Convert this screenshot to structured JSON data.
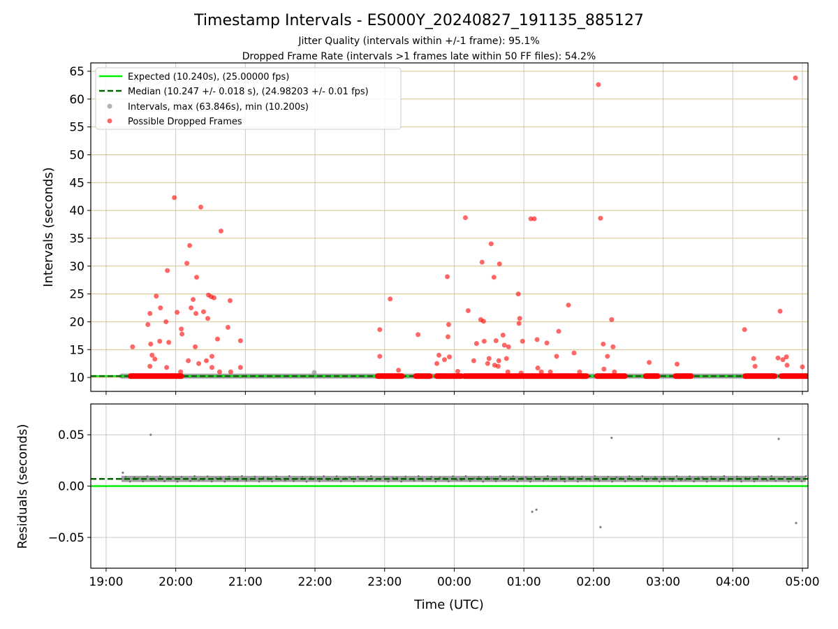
{
  "chart_data": [
    {
      "type": "scatter",
      "title": "Timestamp Intervals - ES000Y_20240827_191135_885127",
      "subtitle_lines": [
        "Jitter Quality (intervals within +/-1 frame): 95.1%",
        "Dropped Frame Rate (intervals >1 frames late within 50 FF files): 54.2%"
      ],
      "xlabel": "",
      "ylabel": "Intervals (seconds)",
      "x_unit": "hours after 19:00 UTC (axis ticks are HH:MM clock times)",
      "xlim": [
        -0.22,
        10.08
      ],
      "ylim": [
        7.5,
        66.5
      ],
      "x_tick_labels": [
        "19:00",
        "20:00",
        "21:00",
        "22:00",
        "23:00",
        "00:00",
        "01:00",
        "02:00",
        "03:00",
        "04:00",
        "05:00"
      ],
      "y_ticks": [
        10,
        15,
        20,
        25,
        30,
        35,
        40,
        45,
        50,
        55,
        60,
        65
      ],
      "grid": true,
      "legend_position": "upper left",
      "legend": [
        "Expected (10.240s), (25.00000 fps)",
        "Median (10.247 +/- 0.018 s), (24.98203 +/- 0.01 fps)",
        "Intervals, max (63.846s), min (10.200s)",
        "Possible Dropped Frames"
      ],
      "series": [
        {
          "name": "Expected (10.240s), (25.00000 fps)",
          "kind": "hline",
          "y": 10.24,
          "color": "#00ee00"
        },
        {
          "name": "Median (10.247 +/- 0.018 s), (24.98203 +/- 0.01 fps)",
          "kind": "hline",
          "y": 10.247,
          "color": "#006400",
          "dash": true
        },
        {
          "name": "Intervals, max (63.846s), min (10.200s)",
          "kind": "band",
          "x_start": 0.22,
          "x_end": 10.05,
          "y": 10.24,
          "color": "#808080",
          "points": [
            [
              0.22,
              10.24
            ],
            [
              2.99,
              10.9
            ],
            [
              10.05,
              10.24
            ]
          ]
        },
        {
          "name": "Possible Dropped Frames",
          "kind": "scatter",
          "color": "#ff0000",
          "runs": [
            [
              0.35,
              1.08
            ],
            [
              3.9,
              4.25
            ],
            [
              4.45,
              4.65
            ],
            [
              4.75,
              5.1
            ],
            [
              5.15,
              6.9
            ],
            [
              7.05,
              7.45
            ],
            [
              7.75,
              7.92
            ],
            [
              8.18,
              8.4
            ],
            [
              9.18,
              9.6
            ],
            [
              9.7,
              10.08
            ]
          ],
          "points": [
            [
              0.38,
              15.5
            ],
            [
              0.6,
              19.5
            ],
            [
              0.63,
              21.5
            ],
            [
              0.64,
              16.0
            ],
            [
              0.63,
              12.0
            ],
            [
              0.66,
              14.0
            ],
            [
              0.7,
              13.3
            ],
            [
              0.72,
              24.6
            ],
            [
              0.77,
              16.5
            ],
            [
              0.78,
              22.5
            ],
            [
              0.86,
              20.0
            ],
            [
              0.87,
              11.8
            ],
            [
              0.88,
              29.2
            ],
            [
              0.9,
              16.3
            ],
            [
              0.98,
              42.3
            ],
            [
              1.02,
              21.7
            ],
            [
              1.08,
              18.7
            ],
            [
              1.09,
              17.8
            ],
            [
              1.07,
              11.0
            ],
            [
              1.16,
              30.5
            ],
            [
              1.2,
              33.7
            ],
            [
              1.18,
              13.0
            ],
            [
              1.22,
              22.5
            ],
            [
              1.25,
              24.0
            ],
            [
              1.28,
              15.5
            ],
            [
              1.29,
              21.5
            ],
            [
              1.33,
              12.5
            ],
            [
              1.3,
              28.0
            ],
            [
              1.36,
              40.6
            ],
            [
              1.4,
              21.8
            ],
            [
              1.44,
              13.0
            ],
            [
              1.47,
              24.8
            ],
            [
              1.46,
              20.6
            ],
            [
              1.51,
              24.5
            ],
            [
              1.52,
              13.8
            ],
            [
              1.55,
              24.3
            ],
            [
              1.52,
              11.8
            ],
            [
              1.6,
              16.9
            ],
            [
              1.65,
              36.3
            ],
            [
              1.63,
              11.0
            ],
            [
              1.75,
              19.0
            ],
            [
              1.78,
              23.8
            ],
            [
              1.79,
              11.0
            ],
            [
              1.93,
              16.6
            ],
            [
              1.93,
              11.8
            ],
            [
              3.93,
              18.6
            ],
            [
              3.93,
              13.8
            ],
            [
              4.08,
              24.1
            ],
            [
              4.2,
              11.3
            ],
            [
              4.48,
              17.7
            ],
            [
              4.75,
              12.5
            ],
            [
              4.78,
              14.0
            ],
            [
              4.86,
              13.2
            ],
            [
              4.9,
              28.1
            ],
            [
              4.91,
              17.3
            ],
            [
              4.92,
              19.5
            ],
            [
              4.93,
              13.7
            ],
            [
              5.05,
              11.1
            ],
            [
              5.16,
              38.7
            ],
            [
              5.2,
              22.0
            ],
            [
              5.28,
              13.0
            ],
            [
              5.32,
              16.1
            ],
            [
              5.38,
              20.4
            ],
            [
              5.4,
              30.7
            ],
            [
              5.43,
              16.5
            ],
            [
              5.42,
              20.1
            ],
            [
              5.48,
              12.5
            ],
            [
              5.5,
              13.4
            ],
            [
              5.53,
              34.0
            ],
            [
              5.57,
              28.0
            ],
            [
              5.58,
              12.2
            ],
            [
              5.6,
              16.6
            ],
            [
              5.63,
              12.0
            ],
            [
              5.64,
              13.0
            ],
            [
              5.65,
              30.4
            ],
            [
              5.7,
              17.6
            ],
            [
              5.72,
              15.8
            ],
            [
              5.75,
              13.4
            ],
            [
              5.78,
              15.5
            ],
            [
              5.77,
              11.0
            ],
            [
              5.92,
              25.0
            ],
            [
              5.93,
              19.7
            ],
            [
              5.94,
              20.6
            ],
            [
              5.98,
              16.5
            ],
            [
              5.96,
              10.8
            ],
            [
              6.1,
              38.5
            ],
            [
              6.15,
              38.5
            ],
            [
              6.19,
              16.8
            ],
            [
              6.2,
              11.7
            ],
            [
              6.25,
              11.0
            ],
            [
              6.33,
              16.2
            ],
            [
              6.38,
              11.0
            ],
            [
              6.47,
              13.8
            ],
            [
              6.5,
              18.3
            ],
            [
              6.64,
              23.0
            ],
            [
              6.72,
              14.4
            ],
            [
              6.8,
              11.0
            ],
            [
              7.07,
              62.6
            ],
            [
              7.1,
              38.6
            ],
            [
              7.14,
              16.0
            ],
            [
              7.15,
              11.5
            ],
            [
              7.2,
              13.8
            ],
            [
              7.26,
              20.4
            ],
            [
              7.28,
              15.5
            ],
            [
              7.3,
              11.0
            ],
            [
              7.8,
              12.7
            ],
            [
              8.2,
              12.4
            ],
            [
              9.17,
              18.6
            ],
            [
              9.3,
              13.4
            ],
            [
              9.32,
              12.0
            ],
            [
              9.65,
              13.5
            ],
            [
              9.68,
              21.9
            ],
            [
              9.72,
              13.2
            ],
            [
              9.77,
              13.7
            ],
            [
              9.78,
              12.2
            ],
            [
              9.9,
              63.8
            ],
            [
              10.0,
              11.9
            ]
          ]
        }
      ]
    },
    {
      "type": "scatter",
      "title": "",
      "xlabel": "Time (UTC)",
      "ylabel": "Residuals (seconds)",
      "xlim": [
        -0.22,
        10.08
      ],
      "ylim": [
        -0.08,
        0.08
      ],
      "x_tick_labels": [
        "19:00",
        "20:00",
        "21:00",
        "22:00",
        "23:00",
        "00:00",
        "01:00",
        "02:00",
        "03:00",
        "04:00",
        "05:00"
      ],
      "y_tick_labels": [
        "−0.05",
        "0.00",
        "0.05"
      ],
      "y_ticks": [
        -0.05,
        0.0,
        0.05
      ],
      "grid": true,
      "series": [
        {
          "name": "",
          "kind": "hline",
          "y": 0.0,
          "color": "#00ee00"
        },
        {
          "name": "",
          "kind": "hline",
          "y": 0.007,
          "color": "#006400",
          "dash": true
        },
        {
          "name": "",
          "kind": "band",
          "x_start": 0.22,
          "x_end": 10.05,
          "y": 0.007,
          "spread": 0.003,
          "color": "#808080"
        },
        {
          "name": "",
          "kind": "scatter",
          "color": "#808080",
          "points": [
            [
              0.24,
              0.013
            ],
            [
              0.64,
              0.05
            ],
            [
              6.12,
              -0.025
            ],
            [
              6.18,
              -0.023
            ],
            [
              7.1,
              -0.04
            ],
            [
              7.26,
              0.047
            ],
            [
              9.66,
              0.046
            ],
            [
              9.91,
              -0.036
            ]
          ]
        }
      ]
    }
  ]
}
